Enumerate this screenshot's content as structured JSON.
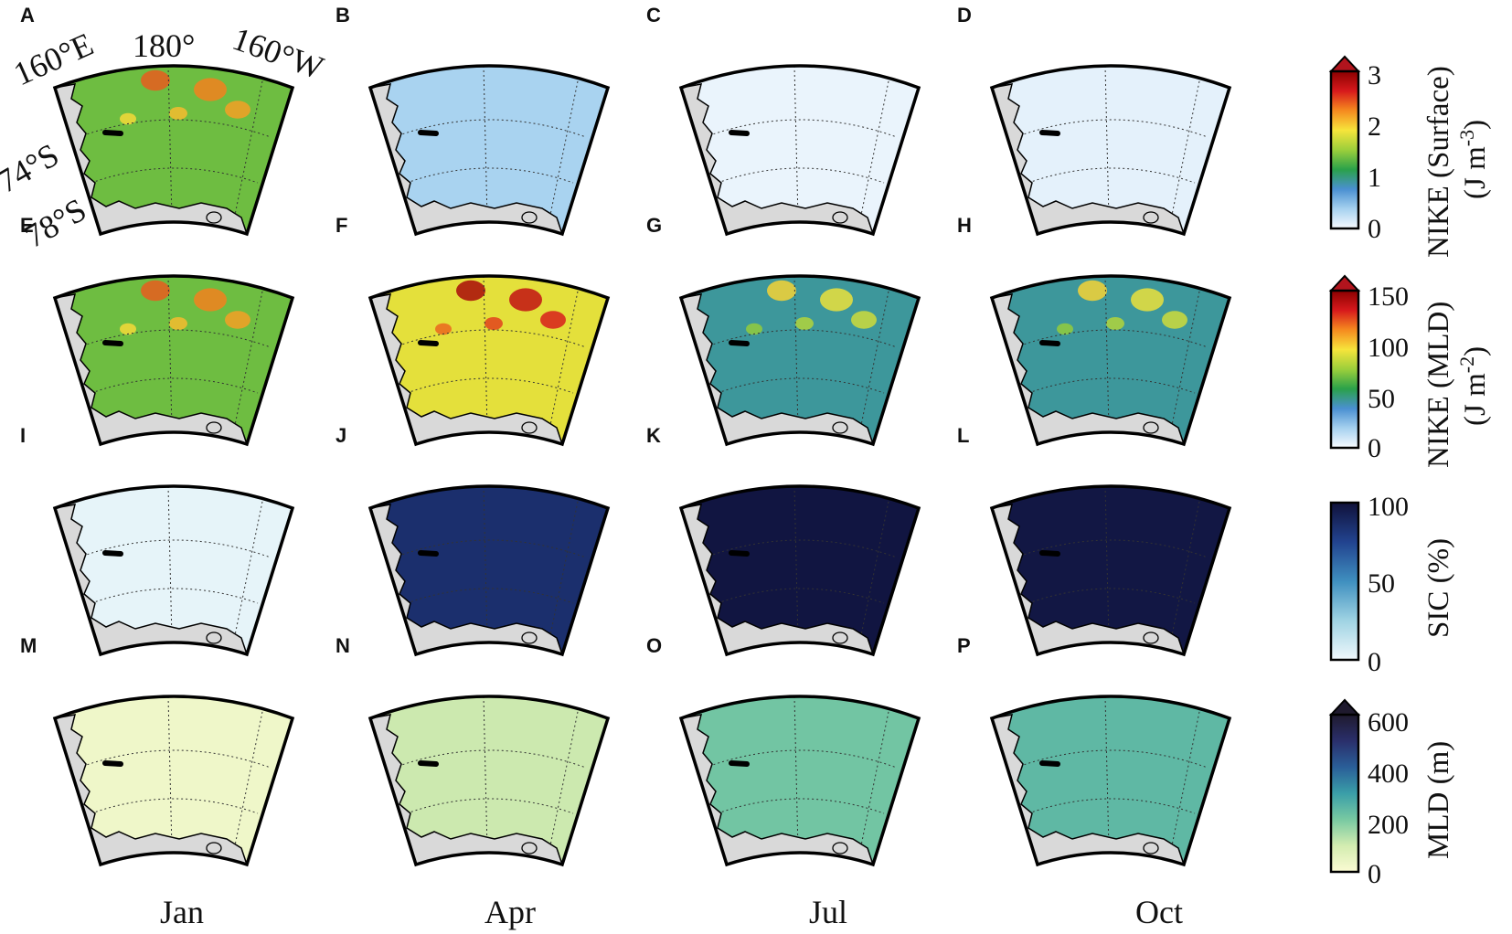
{
  "figure": {
    "coord_labels": {
      "lon_160e": "160°E",
      "lon_180": "180°",
      "lon_160w": "160°W",
      "lat_74s": "74°S",
      "lat_78s": "78°S"
    },
    "months": [
      "Jan",
      "Apr",
      "Jul",
      "Oct"
    ],
    "rows": [
      {
        "variable": "nike_surface",
        "labels": [
          "A",
          "B",
          "C",
          "D"
        ],
        "levels": [
          0.45,
          0.12,
          0.02,
          0.03
        ]
      },
      {
        "variable": "nike_mld",
        "labels": [
          "E",
          "F",
          "G",
          "H"
        ],
        "levels": [
          0.45,
          0.6,
          0.3,
          0.3
        ]
      },
      {
        "variable": "sic",
        "labels": [
          "I",
          "J",
          "K",
          "L"
        ],
        "levels": [
          0.03,
          0.85,
          0.98,
          0.97
        ]
      },
      {
        "variable": "mld",
        "labels": [
          "M",
          "N",
          "O",
          "P"
        ],
        "levels": [
          0.05,
          0.18,
          0.35,
          0.4
        ]
      }
    ],
    "colorbars": [
      {
        "title": "NIKE (Surface)",
        "units": "(J m",
        "units_exp": "-3",
        "units_close": ")",
        "ticks": [
          "3",
          "2",
          "1",
          "0"
        ],
        "extend_color": "#b1141d",
        "colors": [
          "#f7fbff",
          "#a6d1ef",
          "#4a90d1",
          "#2aa14a",
          "#9ccf3b",
          "#f6e43b",
          "#f58a1f",
          "#d7191c",
          "#8b0000"
        ]
      },
      {
        "title": "NIKE (MLD)",
        "units": "(J m",
        "units_exp": "-2",
        "units_close": ")",
        "ticks": [
          "150",
          "100",
          "50",
          "0"
        ],
        "extend_color": "#b1141d",
        "colors": [
          "#f7fbff",
          "#a6d1ef",
          "#4a90d1",
          "#2aa14a",
          "#9ccf3b",
          "#f6e43b",
          "#f58a1f",
          "#d7191c",
          "#8b0000"
        ]
      },
      {
        "title": "SIC (%)",
        "ticks": [
          "100",
          "50",
          "0"
        ],
        "colors": [
          "#f0f8fc",
          "#9fd3e3",
          "#3f8fbf",
          "#22438f",
          "#10113a"
        ]
      },
      {
        "title": "MLD (m)",
        "ticks": [
          "600",
          "400",
          "200",
          "0"
        ],
        "extend_color": "#1f1a2e",
        "colors": [
          "#fbfbd3",
          "#d3ecb0",
          "#78c9a2",
          "#3a9ea8",
          "#2a5e98",
          "#2a2f6b",
          "#1f1a2e"
        ]
      }
    ],
    "colors": {
      "land": "#d9d9d9",
      "coast": "#000000",
      "grid": "#333333"
    }
  }
}
